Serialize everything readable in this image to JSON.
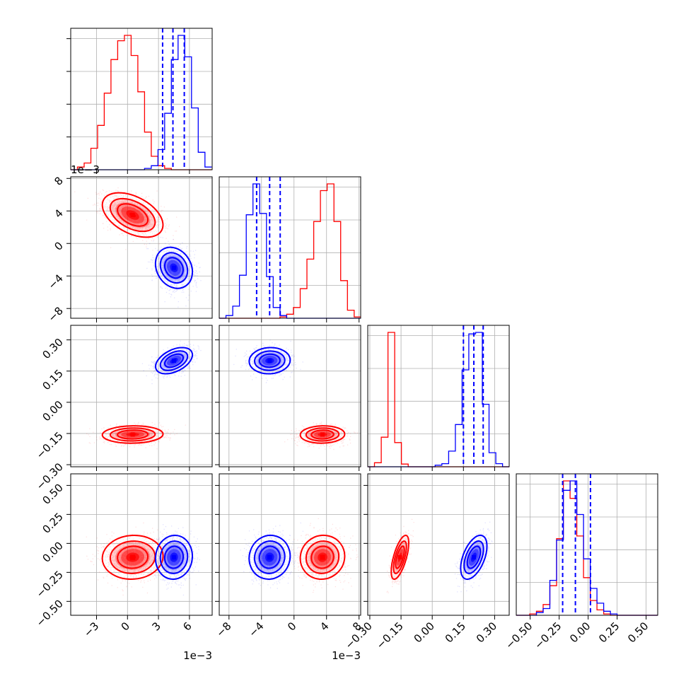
{
  "colors": {
    "red": "#ff0000",
    "blue": "#0000ff",
    "grid": "#b0b0b0",
    "frame": "#000000"
  },
  "chart_data": {
    "type": "corner",
    "description_note": "",
    "params": [
      {
        "ticks": [
          -3,
          0,
          3,
          6
        ],
        "tick_labels": [
          "−3",
          "0",
          "3",
          "6"
        ],
        "range": [
          -5.5,
          8.2
        ],
        "offset_text": "1e−3"
      },
      {
        "ticks": [
          -8,
          -4,
          0,
          4,
          8
        ],
        "tick_labels": [
          "−8",
          "−4",
          "0",
          "4",
          "8"
        ],
        "range": [
          -9.2,
          8.2
        ],
        "offset_text": "1e−3"
      },
      {
        "ticks": [
          -0.3,
          -0.15,
          0.0,
          0.15,
          0.3
        ],
        "tick_labels": [
          "−0.30",
          "−0.15",
          "0.00",
          "0.15",
          "0.30"
        ],
        "range": [
          -0.31,
          0.37
        ],
        "offset_text": ""
      },
      {
        "ticks": [
          -0.5,
          -0.25,
          0.0,
          0.25,
          0.5
        ],
        "tick_labels": [
          "−0.50",
          "−0.25",
          "0.00",
          "0.25",
          "0.50"
        ],
        "range": [
          -0.62,
          0.6
        ],
        "offset_text": ""
      }
    ],
    "series": [
      {
        "color": "red",
        "means": [
          0.5,
          3.5,
          -0.155,
          -0.12
        ],
        "sds": [
          1.4,
          1.3,
          0.02,
          0.09
        ],
        "marginals": [
          {
            "edges_start": -5.5,
            "bin_width": 0.65,
            "counts": [
              0,
              2,
              5,
              16,
              33,
              57,
              82,
              96,
              100,
              85,
              58,
              28,
              10,
              3,
              1,
              0,
              0,
              0,
              0,
              0,
              0
            ]
          },
          {
            "edges_start": -9.2,
            "bin_width": 0.83,
            "counts": [
              0,
              0,
              0,
              0,
              0,
              0,
              0,
              0,
              0,
              1,
              3,
              8,
              22,
              44,
              72,
              95,
              100,
              72,
              28,
              6,
              1
            ]
          },
          {
            "edges_start": -0.31,
            "bin_width": 0.0324,
            "counts": [
              0,
              3,
              22,
              100,
              18,
              2,
              0,
              0,
              0,
              0,
              0,
              0,
              0,
              0,
              0,
              0,
              0,
              0,
              0,
              0,
              0
            ]
          },
          {
            "edges_start": -0.62,
            "bin_width": 0.058,
            "counts": [
              0,
              0,
              1,
              3,
              8,
              22,
              57,
              100,
              87,
              59,
              28,
              11,
              4,
              1,
              0,
              0,
              0,
              0,
              0,
              0,
              0
            ]
          }
        ]
      },
      {
        "color": "blue",
        "means": [
          4.5,
          -3.0,
          0.2,
          -0.12
        ],
        "sds": [
          0.85,
          1.2,
          0.03,
          0.09
        ],
        "quantiles": [
          [
            3.4,
            4.4,
            5.5
          ],
          [
            -4.6,
            -3.0,
            -1.7
          ],
          [
            0.15,
            0.2,
            0.245
          ],
          [
            -0.22,
            -0.11,
            0.02
          ]
        ],
        "marginals": [
          {
            "edges_start": -5.5,
            "bin_width": 0.65,
            "counts": [
              0,
              0,
              0,
              0,
              0,
              0,
              0,
              0,
              0,
              0,
              0,
              1,
              3,
              15,
              42,
              82,
              100,
              84,
              46,
              13,
              2
            ]
          },
          {
            "edges_start": -9.2,
            "bin_width": 0.83,
            "counts": [
              0,
              2,
              9,
              32,
              77,
              100,
              78,
              31,
              8,
              2,
              0,
              0,
              0,
              0,
              0,
              0,
              0,
              0,
              0,
              0,
              0
            ]
          },
          {
            "edges_start": -0.31,
            "bin_width": 0.0324,
            "counts": [
              0,
              0,
              0,
              0,
              0,
              0,
              0,
              0,
              0,
              0,
              1,
              2,
              10,
              27,
              62,
              85,
              86,
              40,
              9,
              2,
              0
            ]
          },
          {
            "edges_start": -0.62,
            "bin_width": 0.058,
            "counts": [
              0,
              0,
              0,
              2,
              5,
              26,
              56,
              93,
              100,
              75,
              42,
              20,
              9,
              3,
              1,
              0,
              0,
              0,
              0,
              0,
              0
            ]
          }
        ]
      }
    ]
  }
}
